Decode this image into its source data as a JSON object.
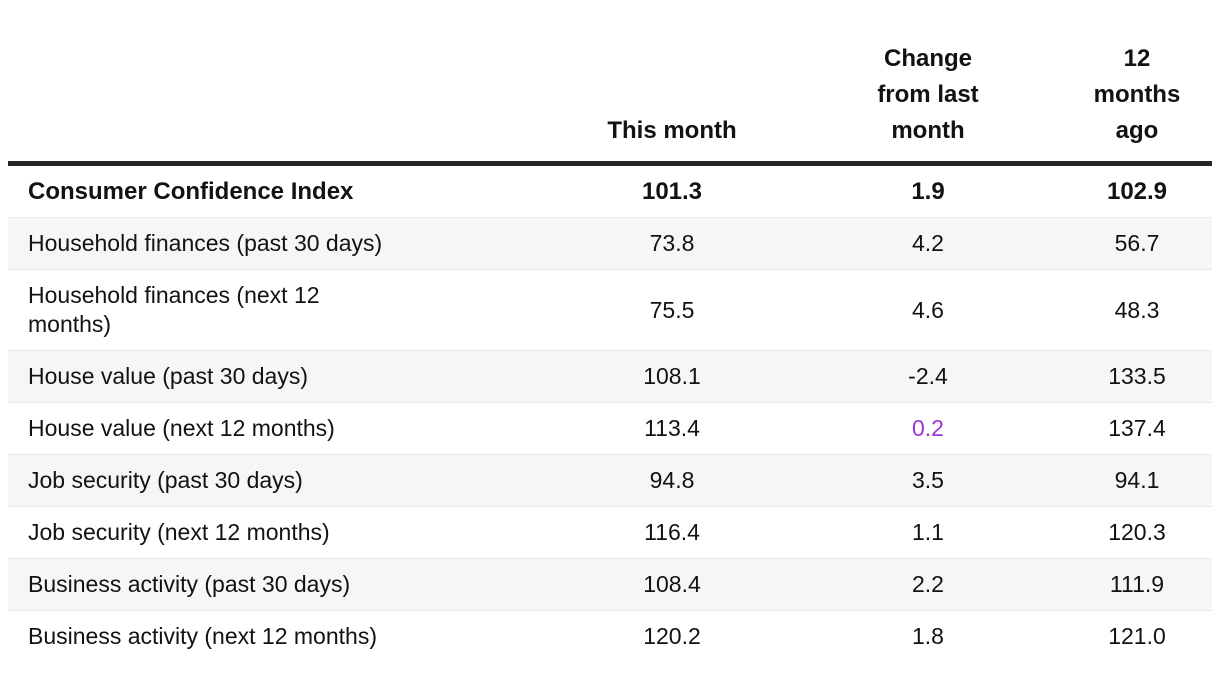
{
  "colors": {
    "highlight_purple": "#9e33db",
    "header_rule": "#262626",
    "stripe_gray": "#f6f6f6",
    "row_divider": "#e8e8e8",
    "text": "#121212"
  },
  "table": {
    "title": "Consumer Confidence Index",
    "headers": {
      "label": "",
      "this_month": "This month",
      "change": "Change\nfrom last\nmonth",
      "year_ago": "12\nmonths\nago"
    },
    "rows": [
      {
        "label": "Consumer Confidence Index",
        "this_month": "101.3",
        "change": "1.9",
        "year_ago": "102.9",
        "bold": true,
        "change_highlighted": false
      },
      {
        "label": "Household finances (past 30 days)",
        "this_month": "73.8",
        "change": "4.2",
        "year_ago": "56.7",
        "bold": false,
        "change_highlighted": false
      },
      {
        "label": "Household finances (next 12\nmonths)",
        "this_month": "75.5",
        "change": "4.6",
        "year_ago": "48.3",
        "bold": false,
        "change_highlighted": false
      },
      {
        "label": "House value (past 30 days)",
        "this_month": "108.1",
        "change": "-2.4",
        "year_ago": "133.5",
        "bold": false,
        "change_highlighted": false
      },
      {
        "label": "House value (next 12 months)",
        "this_month": "113.4",
        "change": "0.2",
        "year_ago": "137.4",
        "bold": false,
        "change_highlighted": true
      },
      {
        "label": "Job security (past 30 days)",
        "this_month": "94.8",
        "change": "3.5",
        "year_ago": "94.1",
        "bold": false,
        "change_highlighted": false
      },
      {
        "label": "Job security (next 12 months)",
        "this_month": "116.4",
        "change": "1.1",
        "year_ago": "120.3",
        "bold": false,
        "change_highlighted": false
      },
      {
        "label": "Business activity (past 30 days)",
        "this_month": "108.4",
        "change": "2.2",
        "year_ago": "111.9",
        "bold": false,
        "change_highlighted": false
      },
      {
        "label": "Business activity (next 12 months)",
        "this_month": "120.2",
        "change": "1.8",
        "year_ago": "121.0",
        "bold": false,
        "change_highlighted": false
      }
    ]
  },
  "chart_data": {
    "type": "table",
    "title": "Consumer Confidence Index",
    "columns": [
      "",
      "This month",
      "Change from last month",
      "12 months ago"
    ],
    "rows": [
      [
        "Consumer Confidence Index",
        101.3,
        1.9,
        102.9
      ],
      [
        "Household finances (past 30 days)",
        73.8,
        4.2,
        56.7
      ],
      [
        "Household finances (next 12 months)",
        75.5,
        4.6,
        48.3
      ],
      [
        "House value (past 30 days)",
        108.1,
        -2.4,
        133.5
      ],
      [
        "House value (next 12 months)",
        113.4,
        0.2,
        137.4
      ],
      [
        "Job security (past 30 days)",
        94.8,
        3.5,
        94.1
      ],
      [
        "Job security (next 12 months)",
        116.4,
        1.1,
        120.3
      ],
      [
        "Business activity (past 30 days)",
        108.4,
        2.2,
        111.9
      ],
      [
        "Business activity (next 12 months)",
        120.2,
        1.8,
        121.0
      ]
    ],
    "layout": {
      "zebra_striping": true,
      "bold_first_row": true,
      "numeric_alignment": "center"
    }
  }
}
